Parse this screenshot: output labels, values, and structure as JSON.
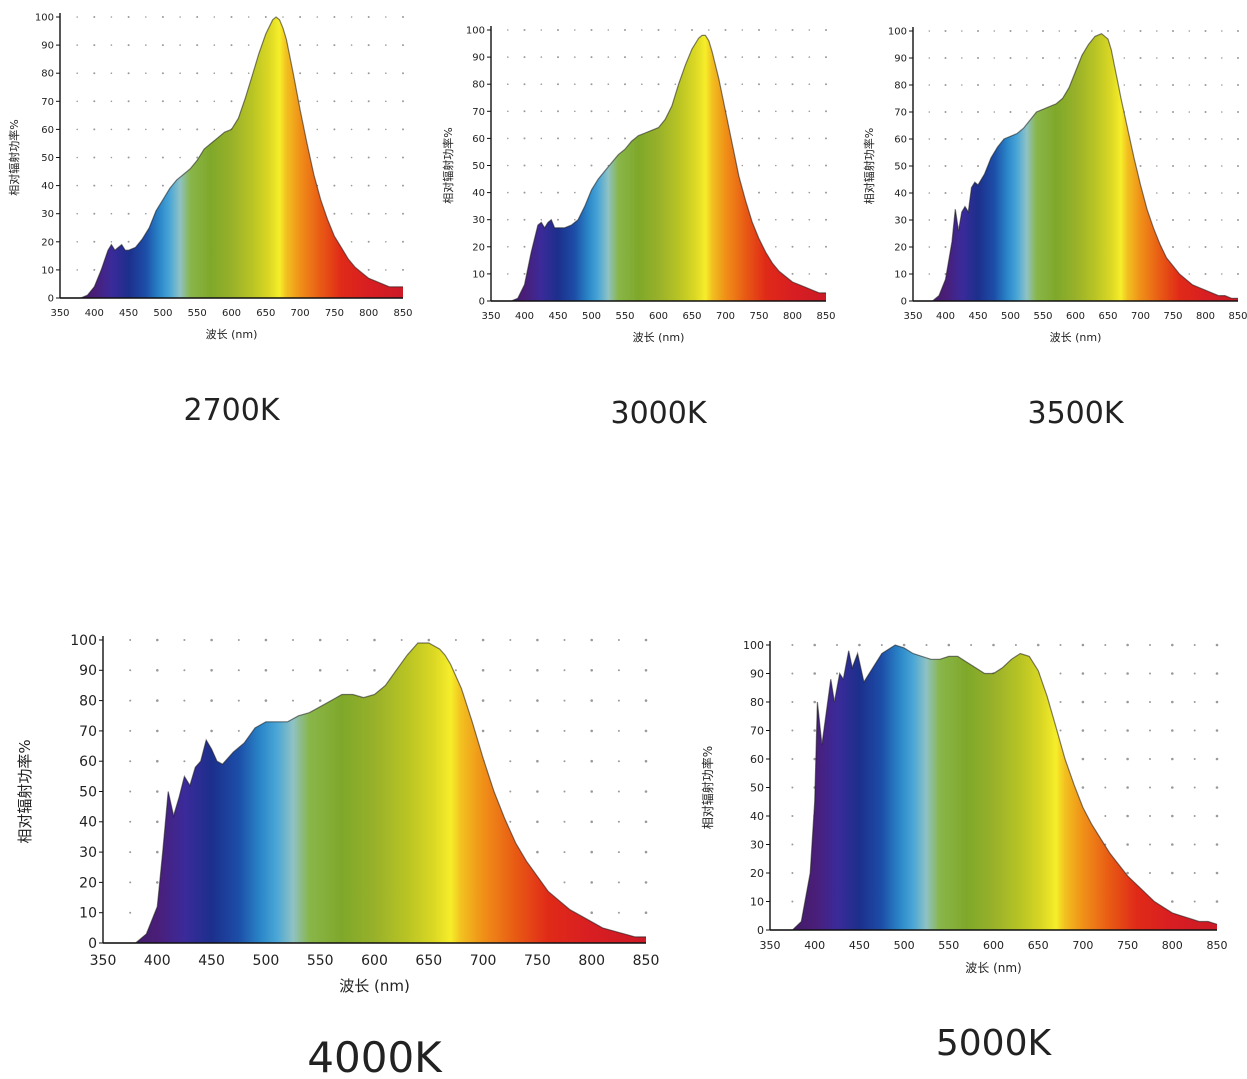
{
  "chart_data": [
    {
      "type": "area",
      "caption": "2700K",
      "xlabel": "波长 (nm)",
      "ylabel": "相对辐射功率%",
      "x_ticks": [
        350,
        400,
        450,
        500,
        550,
        600,
        650,
        700,
        750,
        800,
        850
      ],
      "y_ticks": [
        0,
        10,
        20,
        30,
        40,
        50,
        60,
        70,
        80,
        90,
        100
      ],
      "xlim": [
        350,
        850
      ],
      "ylim": [
        0,
        100
      ],
      "grid": "dotted",
      "series": [
        {
          "x": [
            350,
            380,
            390,
            400,
            410,
            420,
            425,
            430,
            435,
            440,
            445,
            450,
            460,
            470,
            480,
            490,
            500,
            510,
            520,
            530,
            540,
            550,
            560,
            570,
            580,
            590,
            600,
            610,
            620,
            630,
            640,
            650,
            660,
            665,
            670,
            675,
            680,
            690,
            700,
            710,
            720,
            730,
            740,
            750,
            760,
            770,
            780,
            790,
            800,
            810,
            820,
            830,
            840,
            850
          ],
          "y": [
            0,
            0,
            1,
            4,
            10,
            17,
            19,
            17,
            18,
            19,
            17,
            17,
            18,
            21,
            25,
            31,
            35,
            39,
            42,
            44,
            46,
            49,
            53,
            55,
            57,
            59,
            60,
            64,
            71,
            79,
            87,
            94,
            99,
            100,
            99,
            96,
            92,
            80,
            67,
            55,
            44,
            35,
            28,
            22,
            18,
            14,
            11,
            9,
            7,
            6,
            5,
            4,
            4,
            4
          ]
        }
      ]
    },
    {
      "type": "area",
      "caption": "3000K",
      "xlabel": "波长 (nm)",
      "ylabel": "相对辐射功率%",
      "x_ticks": [
        350,
        400,
        450,
        500,
        550,
        600,
        650,
        700,
        750,
        800,
        850
      ],
      "y_ticks": [
        0,
        10,
        20,
        30,
        40,
        50,
        60,
        70,
        80,
        90,
        100
      ],
      "xlim": [
        350,
        850
      ],
      "ylim": [
        0,
        100
      ],
      "grid": "dotted",
      "series": [
        {
          "x": [
            350,
            380,
            390,
            400,
            410,
            420,
            425,
            430,
            435,
            440,
            445,
            450,
            460,
            470,
            480,
            490,
            500,
            510,
            520,
            530,
            540,
            550,
            560,
            570,
            580,
            590,
            600,
            610,
            620,
            630,
            640,
            650,
            660,
            665,
            670,
            675,
            680,
            690,
            700,
            710,
            720,
            730,
            740,
            750,
            760,
            770,
            780,
            790,
            800,
            810,
            820,
            830,
            840,
            850
          ],
          "y": [
            0,
            0,
            1,
            6,
            18,
            28,
            29,
            27,
            29,
            30,
            27,
            27,
            27,
            28,
            30,
            35,
            41,
            45,
            48,
            51,
            54,
            56,
            59,
            61,
            62,
            63,
            64,
            67,
            72,
            80,
            87,
            93,
            97,
            98,
            98,
            96,
            92,
            82,
            70,
            58,
            46,
            37,
            29,
            23,
            18,
            14,
            11,
            9,
            7,
            6,
            5,
            4,
            3,
            3
          ]
        }
      ]
    },
    {
      "type": "area",
      "caption": "3500K",
      "xlabel": "波长 (nm)",
      "ylabel": "相对辐射功率%",
      "x_ticks": [
        350,
        400,
        450,
        500,
        550,
        600,
        650,
        700,
        750,
        800,
        850
      ],
      "y_ticks": [
        0,
        10,
        20,
        30,
        40,
        50,
        60,
        70,
        80,
        90,
        100
      ],
      "xlim": [
        350,
        850
      ],
      "ylim": [
        0,
        100
      ],
      "grid": "dotted",
      "series": [
        {
          "x": [
            350,
            380,
            390,
            400,
            410,
            415,
            420,
            425,
            430,
            435,
            440,
            445,
            450,
            460,
            470,
            480,
            490,
            500,
            510,
            520,
            530,
            540,
            550,
            560,
            570,
            580,
            590,
            600,
            610,
            620,
            630,
            640,
            650,
            655,
            660,
            665,
            670,
            680,
            690,
            700,
            710,
            720,
            730,
            740,
            750,
            760,
            770,
            780,
            790,
            800,
            810,
            820,
            830,
            840,
            850
          ],
          "y": [
            0,
            0,
            2,
            8,
            22,
            34,
            26,
            33,
            35,
            33,
            42,
            44,
            43,
            47,
            53,
            57,
            60,
            61,
            62,
            64,
            67,
            70,
            71,
            72,
            73,
            75,
            79,
            85,
            91,
            95,
            98,
            99,
            97,
            93,
            87,
            81,
            75,
            64,
            53,
            43,
            34,
            27,
            21,
            16,
            13,
            10,
            8,
            6,
            5,
            4,
            3,
            2,
            2,
            1,
            1
          ]
        }
      ]
    },
    {
      "type": "area",
      "caption": "4000K",
      "xlabel": "波长 (nm)",
      "ylabel": "相对辐射功率%",
      "x_ticks": [
        350,
        400,
        450,
        500,
        550,
        600,
        650,
        700,
        750,
        800,
        850
      ],
      "y_ticks": [
        0,
        10,
        20,
        30,
        40,
        50,
        60,
        70,
        80,
        90,
        100
      ],
      "xlim": [
        350,
        850
      ],
      "ylim": [
        0,
        100
      ],
      "grid": "dotted",
      "series": [
        {
          "x": [
            350,
            380,
            390,
            400,
            405,
            410,
            415,
            420,
            425,
            430,
            435,
            440,
            445,
            450,
            455,
            460,
            470,
            480,
            490,
            500,
            510,
            520,
            530,
            540,
            550,
            560,
            570,
            580,
            590,
            600,
            610,
            620,
            630,
            640,
            650,
            660,
            665,
            670,
            680,
            690,
            700,
            710,
            720,
            730,
            740,
            750,
            760,
            770,
            780,
            790,
            800,
            810,
            820,
            830,
            840,
            850
          ],
          "y": [
            0,
            0,
            3,
            12,
            30,
            50,
            42,
            48,
            55,
            52,
            58,
            60,
            67,
            64,
            60,
            59,
            63,
            66,
            71,
            73,
            73,
            73,
            75,
            76,
            78,
            80,
            82,
            82,
            81,
            82,
            85,
            90,
            95,
            99,
            99,
            97,
            95,
            92,
            84,
            73,
            61,
            50,
            41,
            33,
            27,
            22,
            17,
            14,
            11,
            9,
            7,
            5,
            4,
            3,
            2,
            2
          ]
        }
      ]
    },
    {
      "type": "area",
      "caption": "5000K",
      "xlabel": "波长 (nm)",
      "ylabel": "相对辐射功率%",
      "x_ticks": [
        350,
        400,
        450,
        500,
        550,
        600,
        650,
        700,
        750,
        800,
        850
      ],
      "y_ticks": [
        0,
        10,
        20,
        30,
        40,
        50,
        60,
        70,
        80,
        90,
        100
      ],
      "xlim": [
        350,
        850
      ],
      "ylim": [
        0,
        100
      ],
      "grid": "dotted",
      "series": [
        {
          "x": [
            350,
            375,
            385,
            395,
            400,
            403,
            408,
            412,
            418,
            422,
            428,
            432,
            438,
            442,
            448,
            455,
            465,
            475,
            490,
            500,
            510,
            520,
            530,
            540,
            550,
            560,
            570,
            580,
            590,
            600,
            610,
            620,
            630,
            640,
            650,
            660,
            670,
            680,
            690,
            700,
            710,
            720,
            730,
            740,
            750,
            760,
            770,
            780,
            790,
            800,
            810,
            820,
            830,
            840,
            850
          ],
          "y": [
            0,
            0,
            3,
            20,
            45,
            80,
            65,
            74,
            88,
            80,
            90,
            88,
            98,
            92,
            97,
            87,
            92,
            97,
            100,
            99,
            97,
            96,
            95,
            95,
            96,
            96,
            94,
            92,
            90,
            90,
            92,
            95,
            97,
            96,
            91,
            82,
            71,
            60,
            51,
            43,
            37,
            32,
            27,
            23,
            19,
            16,
            13,
            10,
            8,
            6,
            5,
            4,
            3,
            3,
            2
          ]
        }
      ]
    }
  ]
}
